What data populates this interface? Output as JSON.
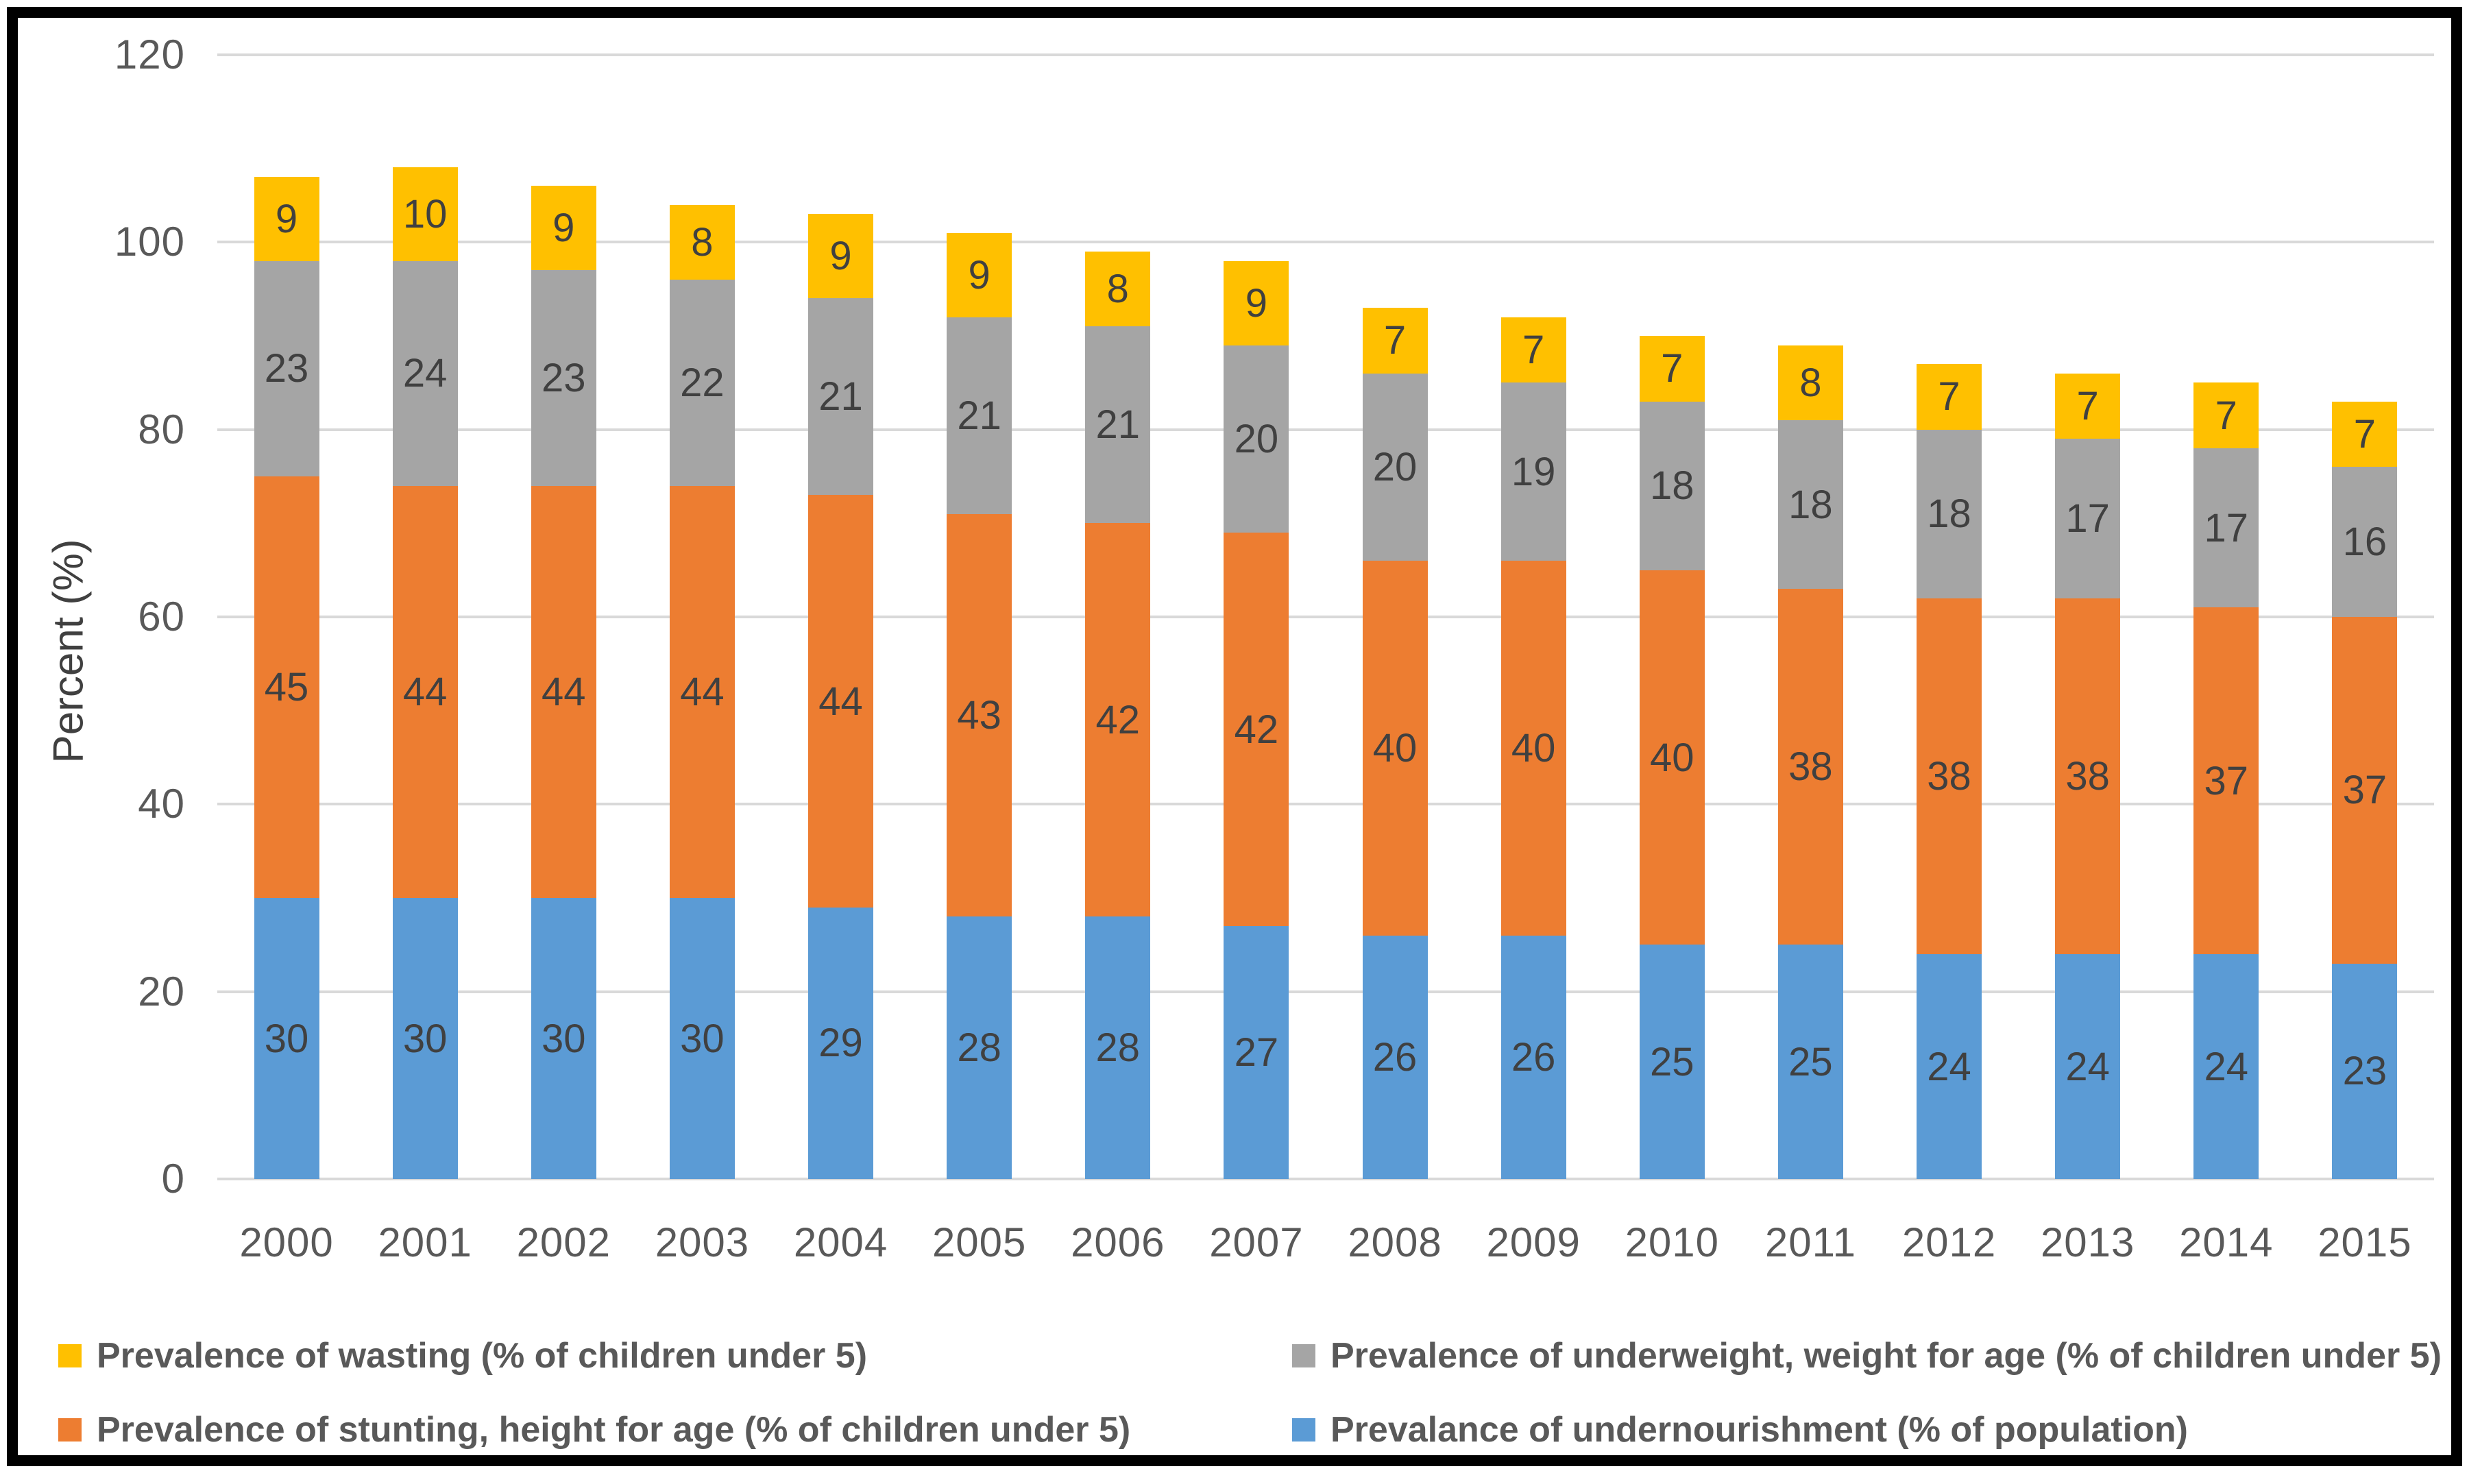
{
  "chart_data": {
    "type": "bar",
    "stacked": true,
    "ylabel": "Percent (%)",
    "ylim": [
      0,
      120
    ],
    "yticks": [
      0,
      20,
      40,
      60,
      80,
      100,
      120
    ],
    "grid": "horizontal",
    "legend_position": "bottom",
    "categories": [
      "2000",
      "2001",
      "2002",
      "2003",
      "2004",
      "2005",
      "2006",
      "2007",
      "2008",
      "2009",
      "2010",
      "2011",
      "2012",
      "2013",
      "2014",
      "2015"
    ],
    "series": [
      {
        "name": "Prevalance of undernourishment (% of population)",
        "color": "#5b9bd5",
        "values": [
          30,
          30,
          30,
          30,
          29,
          28,
          28,
          27,
          26,
          26,
          25,
          25,
          24,
          24,
          24,
          23
        ]
      },
      {
        "name": "Prevalence of stunting, height for age (% of children under 5)",
        "color": "#ed7d31",
        "values": [
          45,
          44,
          44,
          44,
          44,
          43,
          42,
          42,
          40,
          40,
          40,
          38,
          38,
          38,
          37,
          37
        ]
      },
      {
        "name": "Prevalence of underweight, weight for age (% of children under 5)",
        "color": "#a5a5a5",
        "values": [
          23,
          24,
          23,
          22,
          21,
          21,
          21,
          20,
          20,
          19,
          18,
          18,
          18,
          17,
          17,
          16
        ]
      },
      {
        "name": "Prevalence of wasting (% of children under 5)",
        "color": "#ffc000",
        "values": [
          9,
          10,
          9,
          8,
          9,
          9,
          8,
          9,
          7,
          7,
          7,
          8,
          7,
          7,
          7,
          7
        ]
      }
    ]
  },
  "legend": {
    "items": [
      {
        "label": "Prevalence of wasting (% of children under 5)",
        "color": "#ffc000"
      },
      {
        "label": "Prevalence of underweight, weight for age (% of children under 5)",
        "color": "#a5a5a5"
      },
      {
        "label": "Prevalence of stunting, height for age (% of children under 5)",
        "color": "#ed7d31"
      },
      {
        "label": "Prevalance of undernourishment (% of population)",
        "color": "#5b9bd5"
      }
    ]
  },
  "colors": {
    "gridline": "#d9d9d9",
    "axis_text": "#595959",
    "data_label": "#404040",
    "frame_border": "#000000"
  }
}
